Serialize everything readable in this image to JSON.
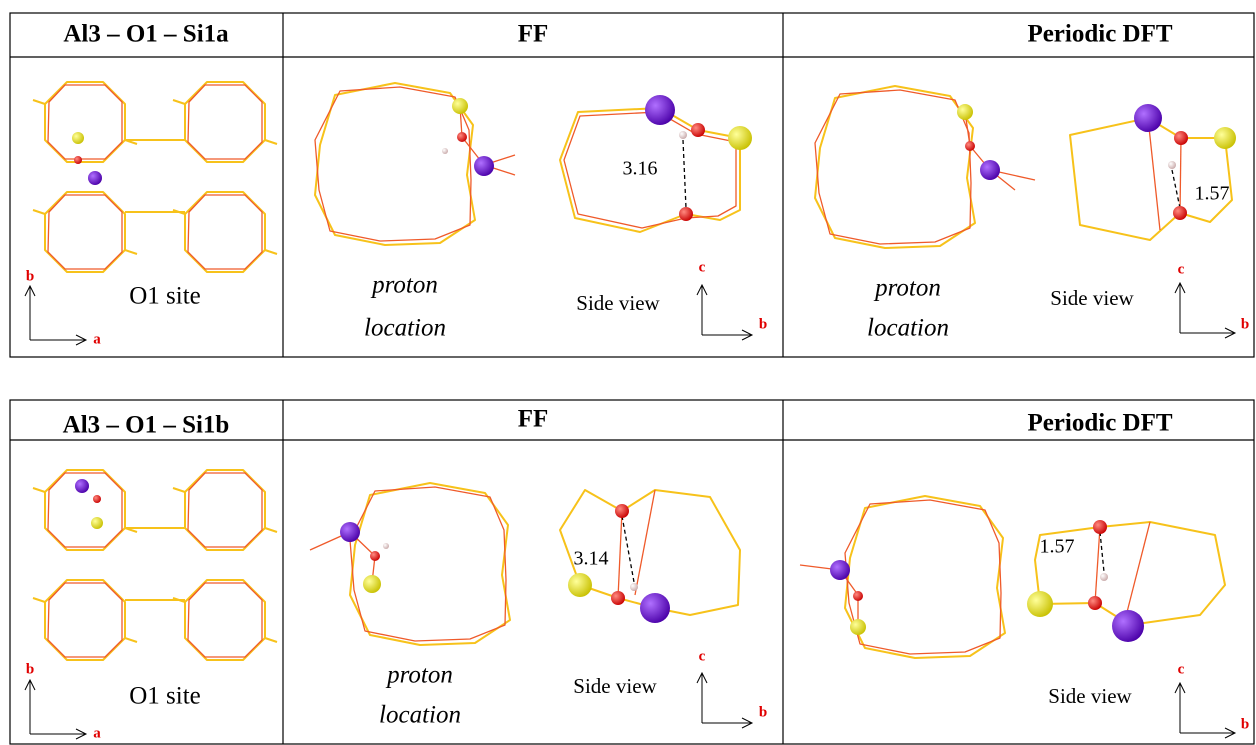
{
  "tables": [
    {
      "header": {
        "site": "Al3 – O1 – Si1a",
        "ff": "FF",
        "dft": "Periodic DFT"
      },
      "site": {
        "label": "O1 site",
        "axis_y": "b",
        "axis_x": "a"
      },
      "ff": {
        "proton_label": [
          "proton",
          "location"
        ],
        "side_view": "Side view",
        "axis_y": "c",
        "axis_x": "b",
        "distance": 3.16
      },
      "dft": {
        "proton_label": [
          "proton",
          "location"
        ],
        "side_view": "Side view",
        "axis_y": "c",
        "axis_x": "b",
        "distance": 1.57
      }
    },
    {
      "header": {
        "site": "Al3 – O1 – Si1b",
        "ff": "FF",
        "dft": "Periodic DFT"
      },
      "site": {
        "label": "O1 site",
        "axis_y": "b",
        "axis_x": "a"
      },
      "ff": {
        "proton_label": [
          "proton",
          "location"
        ],
        "side_view": "Side view",
        "axis_y": "c",
        "axis_x": "b",
        "distance": 3.14
      },
      "dft": {
        "side_view": "Side view",
        "axis_y": "c",
        "axis_x": "b",
        "distance": 1.57
      }
    }
  ]
}
